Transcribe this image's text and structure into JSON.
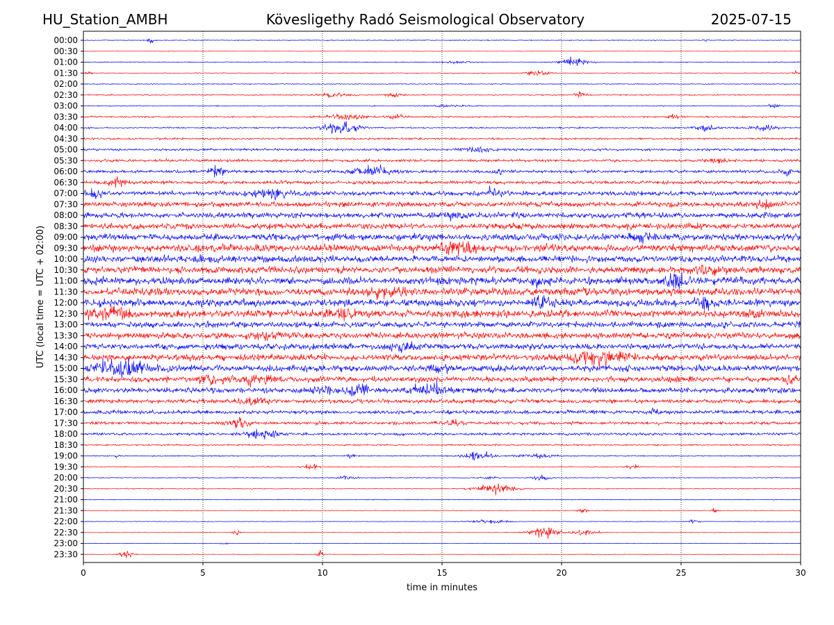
{
  "header": {
    "station": "HU_Station_AMBH",
    "observatory": "Kövesligethy Radó Seismological Observatory",
    "date": "2025-07-15"
  },
  "chart_data": {
    "type": "line",
    "xlabel": "time in minutes",
    "ylabel": "UTC (local time = UTC + 02:00)",
    "xlim": [
      0,
      30
    ],
    "x_ticks": [
      0,
      5,
      10,
      15,
      20,
      25,
      30
    ],
    "grid": "vertical dotted at each x tick",
    "colors": [
      "#0000ff",
      "#ff0000"
    ],
    "traces": [
      {
        "label": "00:00",
        "color": "#0000ff",
        "amplitude": 0.12,
        "events": [
          {
            "t": 2.8,
            "amp": 0.9,
            "width": 0.25
          },
          {
            "t": 26.0,
            "amp": 0.15,
            "width": 0.5
          }
        ]
      },
      {
        "label": "00:30",
        "color": "#ff0000",
        "amplitude": 0.06,
        "events": []
      },
      {
        "label": "01:00",
        "color": "#0000ff",
        "amplitude": 0.12,
        "events": [
          {
            "t": 20.5,
            "amp": 1.2,
            "width": 1.2
          },
          {
            "t": 15.5,
            "amp": 0.3,
            "width": 1.5
          }
        ]
      },
      {
        "label": "01:30",
        "color": "#ff0000",
        "amplitude": 0.1,
        "events": [
          {
            "t": 19.0,
            "amp": 0.7,
            "width": 1.0
          },
          {
            "t": 0.2,
            "amp": 0.5,
            "width": 0.3
          },
          {
            "t": 29.8,
            "amp": 0.5,
            "width": 0.3
          }
        ]
      },
      {
        "label": "02:00",
        "color": "#0000ff",
        "amplitude": 0.12,
        "events": []
      },
      {
        "label": "02:30",
        "color": "#ff0000",
        "amplitude": 0.15,
        "events": [
          {
            "t": 10.5,
            "amp": 0.7,
            "width": 1.2
          },
          {
            "t": 13.0,
            "amp": 0.6,
            "width": 0.8
          },
          {
            "t": 20.8,
            "amp": 0.9,
            "width": 0.5
          }
        ]
      },
      {
        "label": "03:00",
        "color": "#0000ff",
        "amplitude": 0.12,
        "events": [
          {
            "t": 15.5,
            "amp": 0.3,
            "width": 2.0
          },
          {
            "t": 28.8,
            "amp": 0.4,
            "width": 0.6
          }
        ]
      },
      {
        "label": "03:30",
        "color": "#ff0000",
        "amplitude": 0.2,
        "events": [
          {
            "t": 11.0,
            "amp": 0.9,
            "width": 1.5
          },
          {
            "t": 13.0,
            "amp": 0.6,
            "width": 0.8
          },
          {
            "t": 24.7,
            "amp": 0.6,
            "width": 0.5
          }
        ]
      },
      {
        "label": "04:00",
        "color": "#0000ff",
        "amplitude": 0.2,
        "events": [
          {
            "t": 10.8,
            "amp": 1.6,
            "width": 1.5
          },
          {
            "t": 26.0,
            "amp": 0.8,
            "width": 1.0
          },
          {
            "t": 28.5,
            "amp": 0.7,
            "width": 1.0
          }
        ]
      },
      {
        "label": "04:30",
        "color": "#ff0000",
        "amplitude": 0.25,
        "events": []
      },
      {
        "label": "05:00",
        "color": "#0000ff",
        "amplitude": 0.3,
        "events": [
          {
            "t": 16.5,
            "amp": 0.7,
            "width": 1.2
          }
        ]
      },
      {
        "label": "05:30",
        "color": "#ff0000",
        "amplitude": 0.35,
        "events": [
          {
            "t": 26.5,
            "amp": 0.6,
            "width": 1.0
          }
        ]
      },
      {
        "label": "06:00",
        "color": "#0000ff",
        "amplitude": 0.4,
        "events": [
          {
            "t": 5.6,
            "amp": 1.0,
            "width": 0.8
          },
          {
            "t": 12.0,
            "amp": 1.2,
            "width": 1.5
          },
          {
            "t": 17.5,
            "amp": 0.7,
            "width": 0.6
          },
          {
            "t": 29.4,
            "amp": 1.0,
            "width": 0.4
          }
        ]
      },
      {
        "label": "06:30",
        "color": "#ff0000",
        "amplitude": 0.45,
        "events": [
          {
            "t": 1.3,
            "amp": 0.8,
            "width": 1.0
          }
        ]
      },
      {
        "label": "07:00",
        "color": "#0000ff",
        "amplitude": 0.6,
        "events": [
          {
            "t": 0.5,
            "amp": 1.2,
            "width": 0.8
          },
          {
            "t": 8.0,
            "amp": 1.0,
            "width": 2.0
          },
          {
            "t": 17.0,
            "amp": 0.9,
            "width": 1.0
          }
        ]
      },
      {
        "label": "07:30",
        "color": "#ff0000",
        "amplitude": 0.7,
        "events": [
          {
            "t": 28.5,
            "amp": 0.8,
            "width": 1.0
          }
        ]
      },
      {
        "label": "08:00",
        "color": "#0000ff",
        "amplitude": 0.75,
        "events": [
          {
            "t": 15.5,
            "amp": 1.0,
            "width": 1.0
          }
        ]
      },
      {
        "label": "08:30",
        "color": "#ff0000",
        "amplitude": 0.8,
        "events": []
      },
      {
        "label": "09:00",
        "color": "#0000ff",
        "amplitude": 0.9,
        "events": [
          {
            "t": 23.5,
            "amp": 1.0,
            "width": 1.0
          }
        ]
      },
      {
        "label": "09:30",
        "color": "#ff0000",
        "amplitude": 1.0,
        "events": [
          {
            "t": 15.5,
            "amp": 1.3,
            "width": 1.5
          }
        ]
      },
      {
        "label": "10:00",
        "color": "#0000ff",
        "amplitude": 0.9,
        "events": []
      },
      {
        "label": "10:30",
        "color": "#ff0000",
        "amplitude": 0.95,
        "events": [
          {
            "t": 26.0,
            "amp": 1.0,
            "width": 1.0
          }
        ]
      },
      {
        "label": "11:00",
        "color": "#0000ff",
        "amplitude": 1.0,
        "events": [
          {
            "t": 24.8,
            "amp": 1.5,
            "width": 1.2
          },
          {
            "t": 19.2,
            "amp": 1.1,
            "width": 0.6
          }
        ]
      },
      {
        "label": "11:30",
        "color": "#ff0000",
        "amplitude": 1.0,
        "events": [
          {
            "t": 12.5,
            "amp": 1.2,
            "width": 1.5
          }
        ]
      },
      {
        "label": "12:00",
        "color": "#0000ff",
        "amplitude": 0.95,
        "events": [
          {
            "t": 19.2,
            "amp": 1.4,
            "width": 0.8
          },
          {
            "t": 25.9,
            "amp": 1.3,
            "width": 0.8
          }
        ]
      },
      {
        "label": "12:30",
        "color": "#ff0000",
        "amplitude": 1.0,
        "events": [
          {
            "t": 1.0,
            "amp": 1.3,
            "width": 1.5
          },
          {
            "t": 11.0,
            "amp": 1.0,
            "width": 1.5
          },
          {
            "t": 28.2,
            "amp": 0.9,
            "width": 0.6
          }
        ]
      },
      {
        "label": "13:00",
        "color": "#0000ff",
        "amplitude": 0.8,
        "events": []
      },
      {
        "label": "13:30",
        "color": "#ff0000",
        "amplitude": 0.85,
        "events": [
          {
            "t": 7.5,
            "amp": 0.9,
            "width": 1.0
          }
        ]
      },
      {
        "label": "14:00",
        "color": "#0000ff",
        "amplitude": 0.8,
        "events": [
          {
            "t": 13.5,
            "amp": 1.1,
            "width": 1.2
          }
        ]
      },
      {
        "label": "14:30",
        "color": "#ff0000",
        "amplitude": 0.85,
        "events": [
          {
            "t": 21.5,
            "amp": 1.8,
            "width": 2.5
          }
        ]
      },
      {
        "label": "15:00",
        "color": "#0000ff",
        "amplitude": 0.85,
        "events": [
          {
            "t": 1.5,
            "amp": 1.8,
            "width": 2.5
          },
          {
            "t": 15.0,
            "amp": 1.1,
            "width": 1.0
          }
        ]
      },
      {
        "label": "15:30",
        "color": "#ff0000",
        "amplitude": 0.8,
        "events": [
          {
            "t": 5.3,
            "amp": 1.4,
            "width": 0.8
          },
          {
            "t": 7.0,
            "amp": 1.3,
            "width": 1.5
          },
          {
            "t": 29.5,
            "amp": 0.8,
            "width": 0.5
          }
        ]
      },
      {
        "label": "16:00",
        "color": "#0000ff",
        "amplitude": 0.7,
        "events": [
          {
            "t": 10.0,
            "amp": 1.2,
            "width": 1.0
          },
          {
            "t": 11.5,
            "amp": 1.2,
            "width": 1.0
          },
          {
            "t": 14.5,
            "amp": 1.5,
            "width": 1.5
          }
        ]
      },
      {
        "label": "16:30",
        "color": "#ff0000",
        "amplitude": 0.55,
        "events": [
          {
            "t": 7.0,
            "amp": 1.0,
            "width": 1.5
          }
        ]
      },
      {
        "label": "17:00",
        "color": "#0000ff",
        "amplitude": 0.5,
        "events": [
          {
            "t": 23.8,
            "amp": 0.8,
            "width": 0.6
          }
        ]
      },
      {
        "label": "17:30",
        "color": "#ff0000",
        "amplitude": 0.4,
        "events": [
          {
            "t": 6.5,
            "amp": 1.3,
            "width": 1.0
          },
          {
            "t": 15.5,
            "amp": 0.6,
            "width": 1.0
          }
        ]
      },
      {
        "label": "18:00",
        "color": "#0000ff",
        "amplitude": 0.35,
        "events": [
          {
            "t": 7.5,
            "amp": 1.2,
            "width": 1.2
          }
        ]
      },
      {
        "label": "18:30",
        "color": "#ff0000",
        "amplitude": 0.2,
        "events": []
      },
      {
        "label": "19:00",
        "color": "#0000ff",
        "amplitude": 0.15,
        "events": [
          {
            "t": 1.4,
            "amp": 0.9,
            "width": 0.2
          },
          {
            "t": 11.2,
            "amp": 0.6,
            "width": 0.4
          },
          {
            "t": 16.5,
            "amp": 1.2,
            "width": 1.2
          },
          {
            "t": 19.0,
            "amp": 0.6,
            "width": 1.5
          }
        ]
      },
      {
        "label": "19:30",
        "color": "#ff0000",
        "amplitude": 0.12,
        "events": [
          {
            "t": 9.5,
            "amp": 0.7,
            "width": 0.6
          },
          {
            "t": 23.0,
            "amp": 0.6,
            "width": 0.5
          }
        ]
      },
      {
        "label": "20:00",
        "color": "#0000ff",
        "amplitude": 0.12,
        "events": [
          {
            "t": 11.0,
            "amp": 0.5,
            "width": 1.0
          },
          {
            "t": 17.0,
            "amp": 0.6,
            "width": 0.6
          },
          {
            "t": 19.2,
            "amp": 0.7,
            "width": 0.8
          }
        ]
      },
      {
        "label": "20:30",
        "color": "#ff0000",
        "amplitude": 0.12,
        "events": [
          {
            "t": 17.2,
            "amp": 1.4,
            "width": 1.5
          }
        ]
      },
      {
        "label": "21:00",
        "color": "#0000ff",
        "amplitude": 0.1,
        "events": []
      },
      {
        "label": "21:30",
        "color": "#ff0000",
        "amplitude": 0.08,
        "events": [
          {
            "t": 20.9,
            "amp": 0.8,
            "width": 0.4
          },
          {
            "t": 26.4,
            "amp": 0.6,
            "width": 0.3
          }
        ]
      },
      {
        "label": "22:00",
        "color": "#0000ff",
        "amplitude": 0.08,
        "events": [
          {
            "t": 17.0,
            "amp": 0.5,
            "width": 1.5
          },
          {
            "t": 25.5,
            "amp": 0.5,
            "width": 0.5
          }
        ]
      },
      {
        "label": "22:30",
        "color": "#ff0000",
        "amplitude": 0.08,
        "events": [
          {
            "t": 19.3,
            "amp": 1.6,
            "width": 1.2
          },
          {
            "t": 21.0,
            "amp": 0.9,
            "width": 1.0
          },
          {
            "t": 6.4,
            "amp": 0.7,
            "width": 0.3
          }
        ]
      },
      {
        "label": "23:00",
        "color": "#0000ff",
        "amplitude": 0.07,
        "events": [
          {
            "t": 5.9,
            "amp": 0.4,
            "width": 0.3
          }
        ]
      },
      {
        "label": "23:30",
        "color": "#ff0000",
        "amplitude": 0.07,
        "events": [
          {
            "t": 1.8,
            "amp": 1.2,
            "width": 0.5
          },
          {
            "t": 9.9,
            "amp": 1.0,
            "width": 0.3
          }
        ]
      }
    ]
  }
}
